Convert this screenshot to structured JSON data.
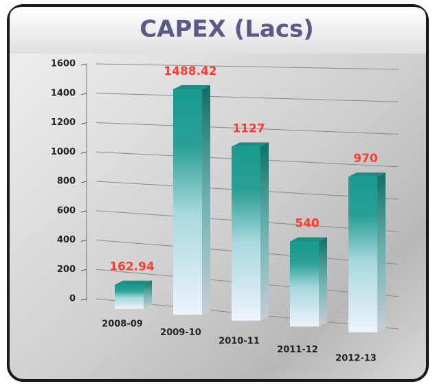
{
  "chart_data": {
    "type": "bar",
    "title": "CAPEX (Lacs)",
    "categories": [
      "2008-09",
      "2009-10",
      "2010-11",
      "2011-12",
      "2012-13"
    ],
    "values": [
      162.94,
      1488.42,
      1127,
      540,
      970
    ],
    "color": "#1a9a8e",
    "label_color": "#ff3b30",
    "ylim": [
      0,
      1600
    ],
    "yticks": [
      0,
      200,
      400,
      600,
      800,
      1000,
      1200,
      1400,
      1600
    ],
    "grid": true
  }
}
